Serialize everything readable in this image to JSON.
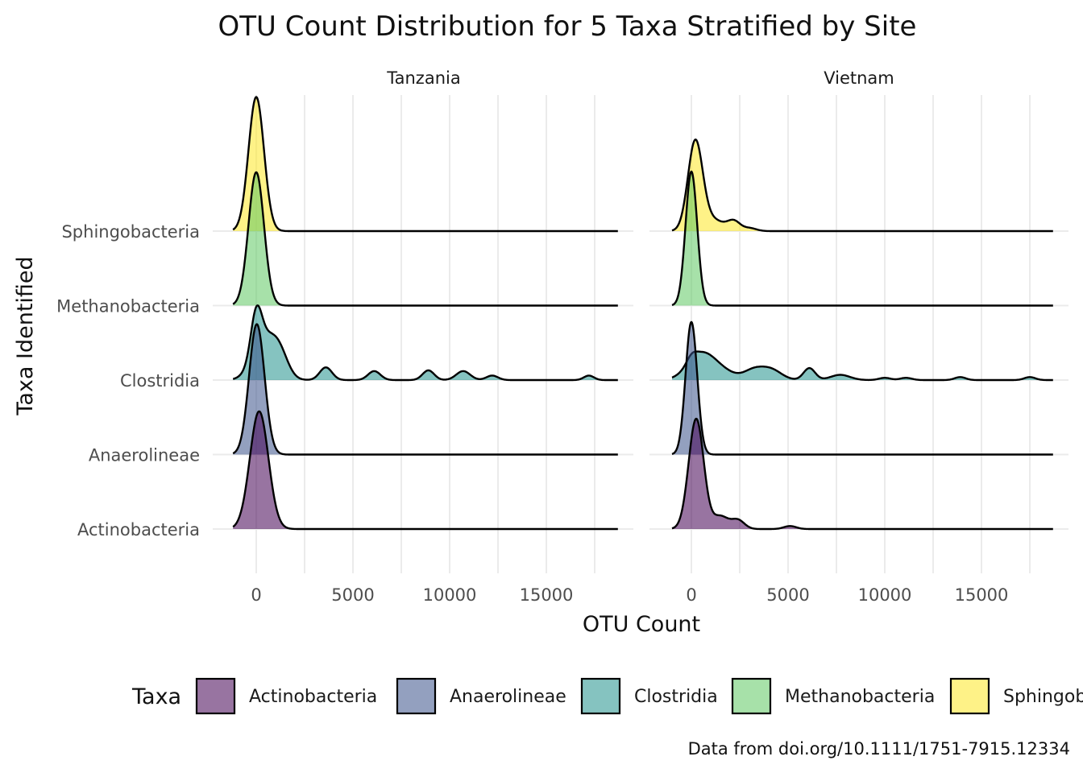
{
  "chart_data": {
    "type": "ridgeline",
    "title": "OTU Count Distribution for 5 Taxa Stratified by Site",
    "xlabel": "OTU Count",
    "ylabel": "Taxa Identified",
    "caption": "Data from doi.org/10.1111/1751-7915.12334",
    "legend_title": "Taxa",
    "legend_position": "bottom",
    "grid": true,
    "xlim": [
      -1300,
      18700
    ],
    "x_ticks": [
      0,
      5000,
      10000,
      15000
    ],
    "x_tick_labels": [
      "0",
      "5000",
      "10000",
      "15000"
    ],
    "categories": [
      "Actinobacteria",
      "Anaerolineae",
      "Clostridia",
      "Methanobacteria",
      "Sphingobacteria"
    ],
    "colors": {
      "Actinobacteria": "#440154",
      "Anaerolineae": "#3b528b",
      "Clostridia": "#21918c",
      "Methanobacteria": "#5ec962",
      "Sphingobacteria": "#fde725"
    },
    "y_scale_note": "ridge heights in units of one category spacing",
    "facets": [
      {
        "site": "Tanzania",
        "series": [
          {
            "name": "Actinobacteria",
            "peaks": [
              [
                150,
                1.58,
                480
              ]
            ],
            "range": [
              -1200,
              18700
            ]
          },
          {
            "name": "Anaerolineae",
            "peaks": [
              [
                30,
                1.75,
                400
              ]
            ],
            "range": [
              -1200,
              18700
            ]
          },
          {
            "name": "Clostridia",
            "peaks": [
              [
                0,
                0.56,
                280
              ],
              [
                400,
                0.52,
                600
              ],
              [
                1200,
                0.3,
                450
              ],
              [
                3600,
                0.17,
                320
              ],
              [
                6100,
                0.12,
                320
              ],
              [
                8900,
                0.13,
                300
              ],
              [
                10700,
                0.12,
                360
              ],
              [
                12200,
                0.06,
                300
              ],
              [
                17200,
                0.06,
                260
              ]
            ],
            "range": [
              -1200,
              18700
            ]
          },
          {
            "name": "Methanobacteria",
            "peaks": [
              [
                0,
                1.79,
                400
              ]
            ],
            "range": [
              -1200,
              18700
            ]
          },
          {
            "name": "Sphingobacteria",
            "peaks": [
              [
                0,
                1.8,
                400
              ]
            ],
            "range": [
              -1200,
              18700
            ]
          }
        ]
      },
      {
        "site": "Vietnam",
        "series": [
          {
            "name": "Actinobacteria",
            "peaks": [
              [
                250,
                1.48,
                390
              ],
              [
                1500,
                0.17,
                400
              ],
              [
                2400,
                0.12,
                340
              ],
              [
                5100,
                0.04,
                320
              ]
            ],
            "range": [
              -1000,
              18700
            ]
          },
          {
            "name": "Anaerolineae",
            "peaks": [
              [
                0,
                1.78,
                300
              ]
            ],
            "range": [
              -1000,
              18700
            ]
          },
          {
            "name": "Clostridia",
            "peaks": [
              [
                500,
                0.34,
                700
              ],
              [
                0,
                0.08,
                250
              ],
              [
                1600,
                0.1,
                700
              ],
              [
                3200,
                0.12,
                500
              ],
              [
                4100,
                0.14,
                550
              ],
              [
                6100,
                0.16,
                300
              ],
              [
                7700,
                0.07,
                500
              ],
              [
                10000,
                0.03,
                300
              ],
              [
                11100,
                0.03,
                300
              ],
              [
                13900,
                0.04,
                280
              ],
              [
                17500,
                0.04,
                280
              ]
            ],
            "range": [
              -1000,
              18700
            ]
          },
          {
            "name": "Methanobacteria",
            "peaks": [
              [
                0,
                1.8,
                300
              ]
            ],
            "range": [
              -1000,
              18700
            ]
          },
          {
            "name": "Sphingobacteria",
            "peaks": [
              [
                200,
                1.18,
                380
              ],
              [
                1100,
                0.15,
                600
              ],
              [
                2200,
                0.12,
                320
              ],
              [
                3000,
                0.04,
                350
              ]
            ],
            "range": [
              -1000,
              18700
            ]
          }
        ]
      }
    ]
  }
}
